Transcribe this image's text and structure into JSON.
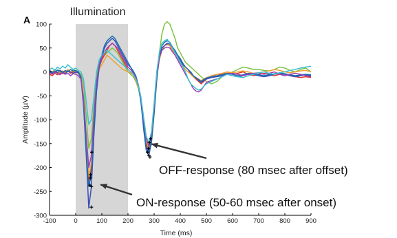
{
  "panel_label": "A",
  "chart_data": {
    "type": "line",
    "xlabel": "Time (ms)",
    "ylabel": "Amplitude (µV)",
    "xlim": [
      -100,
      900
    ],
    "ylim": [
      -300,
      100
    ],
    "x_ticks": [
      -100,
      0,
      100,
      200,
      300,
      400,
      500,
      600,
      700,
      800,
      900
    ],
    "y_ticks": [
      100,
      50,
      0,
      -50,
      -100,
      -150,
      -200,
      -250,
      -300
    ],
    "shaded_region": {
      "label": "Illumination",
      "x_start": 0,
      "x_end": 200,
      "color": "#d6d6d6"
    },
    "annotations": [
      {
        "text": "OFF-response (80 msec after offset)",
        "arrow_to": [
          285,
          -148
        ]
      },
      {
        "text": "ON-response (50-60 msec after onset)",
        "arrow_to": [
          85,
          -230
        ]
      }
    ],
    "x": [
      -100,
      -90,
      -80,
      -70,
      -60,
      -50,
      -40,
      -30,
      -20,
      -10,
      0,
      10,
      20,
      30,
      40,
      50,
      60,
      70,
      80,
      90,
      100,
      110,
      120,
      130,
      140,
      150,
      160,
      170,
      180,
      190,
      200,
      210,
      220,
      230,
      240,
      250,
      260,
      270,
      280,
      290,
      300,
      310,
      320,
      330,
      340,
      350,
      360,
      370,
      380,
      390,
      400,
      410,
      420,
      430,
      440,
      450,
      460,
      470,
      480,
      490,
      500,
      520,
      540,
      560,
      580,
      600,
      620,
      640,
      660,
      680,
      700,
      720,
      740,
      760,
      780,
      800,
      820,
      840,
      860,
      880,
      900
    ],
    "series": [
      {
        "color": "#7fc241",
        "values": [
          3,
          -2,
          5,
          0,
          -3,
          2,
          0,
          4,
          -2,
          6,
          2,
          0,
          -5,
          -25,
          -90,
          -160,
          -140,
          -70,
          -10,
          20,
          30,
          35,
          40,
          45,
          50,
          45,
          40,
          30,
          20,
          10,
          0,
          -5,
          -10,
          -20,
          -35,
          -60,
          -110,
          -150,
          -170,
          -150,
          -90,
          -20,
          40,
          80,
          100,
          105,
          100,
          85,
          70,
          50,
          40,
          30,
          20,
          15,
          10,
          5,
          0,
          -5,
          -10,
          -15,
          -20,
          -25,
          -20,
          -10,
          -5,
          0,
          5,
          10,
          8,
          5,
          5,
          3,
          2,
          5,
          10,
          8,
          3,
          0,
          5,
          8,
          0
        ]
      },
      {
        "color": "#e03a2e",
        "values": [
          -5,
          -8,
          -3,
          -6,
          -2,
          -4,
          0,
          2,
          -3,
          0,
          -2,
          0,
          -10,
          -60,
          -150,
          -230,
          -200,
          -110,
          -30,
          10,
          25,
          35,
          45,
          55,
          60,
          55,
          45,
          35,
          25,
          15,
          5,
          0,
          -5,
          -15,
          -30,
          -60,
          -110,
          -150,
          -168,
          -140,
          -80,
          -10,
          30,
          50,
          55,
          58,
          55,
          45,
          40,
          30,
          25,
          15,
          10,
          5,
          -5,
          -10,
          -15,
          -20,
          -25,
          -20,
          -15,
          -10,
          -5,
          -5,
          0,
          -5,
          -3,
          0,
          -5,
          -8,
          -5,
          -3,
          -5,
          -8,
          -5,
          -5,
          -8,
          -10,
          -12,
          -10,
          -12
        ]
      },
      {
        "color": "#f0a030",
        "values": [
          -2,
          0,
          3,
          -4,
          0,
          2,
          -3,
          5,
          0,
          2,
          0,
          -2,
          -8,
          -50,
          -140,
          -220,
          -190,
          -100,
          -25,
          5,
          15,
          25,
          35,
          30,
          25,
          20,
          15,
          10,
          5,
          3,
          0,
          -2,
          -6,
          -18,
          -32,
          -58,
          -105,
          -145,
          -160,
          -135,
          -75,
          -10,
          25,
          45,
          55,
          60,
          55,
          45,
          35,
          25,
          20,
          12,
          5,
          0,
          -5,
          -10,
          -12,
          -15,
          -18,
          -15,
          -12,
          -8,
          -5,
          -3,
          0,
          -2,
          0,
          2,
          0,
          -3,
          -2,
          0,
          2,
          5,
          3,
          0,
          -2,
          0,
          2,
          3,
          0
        ]
      },
      {
        "color": "#3a4fb8",
        "values": [
          0,
          -3,
          2,
          -2,
          3,
          0,
          -4,
          2,
          0,
          -3,
          0,
          -2,
          -12,
          -70,
          -170,
          -285,
          -240,
          -130,
          -40,
          10,
          30,
          50,
          60,
          65,
          70,
          65,
          55,
          45,
          35,
          25,
          15,
          10,
          0,
          -10,
          -30,
          -65,
          -120,
          -165,
          -175,
          -145,
          -85,
          -15,
          30,
          50,
          55,
          60,
          58,
          50,
          42,
          35,
          25,
          15,
          10,
          5,
          0,
          -8,
          -12,
          -18,
          -22,
          -18,
          -15,
          -12,
          -10,
          -8,
          -5,
          -8,
          -10,
          -8,
          -5,
          -5,
          -8,
          -10,
          -8,
          -5,
          -3,
          -5,
          -8,
          -10,
          -8,
          -6,
          -8
        ]
      },
      {
        "color": "#1a6db0",
        "values": [
          3,
          0,
          -2,
          4,
          2,
          -2,
          3,
          0,
          5,
          2,
          3,
          0,
          -10,
          -65,
          -165,
          -240,
          -215,
          -120,
          -35,
          15,
          35,
          55,
          65,
          70,
          75,
          70,
          60,
          50,
          40,
          30,
          20,
          10,
          2,
          -8,
          -28,
          -62,
          -115,
          -158,
          -168,
          -140,
          -80,
          -12,
          35,
          55,
          62,
          65,
          62,
          52,
          45,
          35,
          28,
          18,
          10,
          5,
          -2,
          -8,
          -12,
          -16,
          -20,
          -16,
          -13,
          -10,
          -8,
          -6,
          -3,
          -5,
          -8,
          -6,
          -3,
          -4,
          -6,
          -8,
          -6,
          -4,
          -2,
          -4,
          -6,
          -8,
          -6,
          -5,
          -6
        ]
      },
      {
        "color": "#9b40b8",
        "values": [
          -2,
          -5,
          0,
          -3,
          -6,
          -2,
          -5,
          -3,
          -8,
          -4,
          -5,
          -8,
          -15,
          -55,
          -130,
          -200,
          -175,
          -90,
          -20,
          15,
          30,
          40,
          50,
          55,
          60,
          55,
          50,
          40,
          30,
          20,
          10,
          5,
          -2,
          -12,
          -28,
          -55,
          -100,
          -140,
          -155,
          -130,
          -70,
          -5,
          30,
          45,
          50,
          52,
          50,
          42,
          35,
          25,
          15,
          5,
          -5,
          -15,
          -25,
          -35,
          -40,
          -42,
          -38,
          -30,
          -22,
          -18,
          -15,
          -10,
          -5,
          -3,
          -5,
          -8,
          -5,
          -3,
          -2,
          -5,
          -3,
          0,
          -5,
          -8,
          -5,
          -3,
          -5,
          -8,
          -10
        ]
      },
      {
        "color": "#3ec2d0",
        "values": [
          5,
          8,
          3,
          10,
          6,
          12,
          8,
          15,
          10,
          5,
          8,
          3,
          0,
          -15,
          -60,
          -110,
          -100,
          -50,
          0,
          25,
          35,
          40,
          45,
          40,
          35,
          30,
          25,
          20,
          15,
          10,
          5,
          0,
          -5,
          -15,
          -30,
          -55,
          -95,
          -135,
          -148,
          -125,
          -65,
          0,
          40,
          60,
          65,
          68,
          60,
          50,
          40,
          30,
          20,
          10,
          0,
          -15,
          -25,
          -30,
          -35,
          -38,
          -36,
          -30,
          -25,
          -20,
          -15,
          -10,
          -5,
          -8,
          -10,
          -12,
          -8,
          -5,
          -2,
          0,
          -3,
          -5,
          -2,
          0,
          3,
          5,
          8,
          10,
          12
        ]
      }
    ],
    "markers": [
      {
        "x": 55,
        "y": -237
      },
      {
        "x": 56,
        "y": -222
      },
      {
        "x": 57,
        "y": -215
      },
      {
        "x": 60,
        "y": -283
      },
      {
        "x": 60,
        "y": -240
      },
      {
        "x": 62,
        "y": -168
      },
      {
        "x": 275,
        "y": -168
      },
      {
        "x": 278,
        "y": -160
      },
      {
        "x": 280,
        "y": -175
      },
      {
        "x": 282,
        "y": -148
      },
      {
        "x": 284,
        "y": -178
      },
      {
        "x": 286,
        "y": -140
      }
    ]
  }
}
